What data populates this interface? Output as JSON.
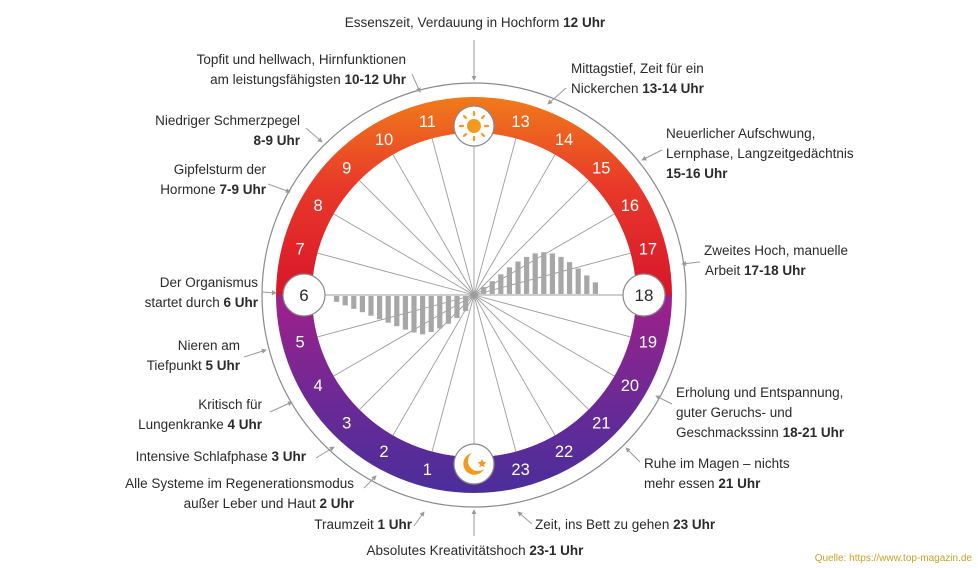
{
  "hours_top": [
    "7",
    "8",
    "9",
    "10",
    "11",
    "13",
    "14",
    "15",
    "16",
    "17"
  ],
  "hours_bottom": [
    "19",
    "20",
    "21",
    "22",
    "23",
    "1",
    "2",
    "3",
    "4",
    "5"
  ],
  "hour_6": "6",
  "hour_18": "18",
  "icons": {
    "noon": "sun-icon",
    "midnight": "moon-star-icon"
  },
  "colors": {
    "orange": "#f07a1a",
    "red": "#d8162a",
    "magenta": "#a0208a",
    "purple": "#4a2e9a",
    "bars": "#a7a7a7"
  },
  "activity_levels": {
    "morning_6_to_12": [
      0.1,
      0.16,
      0.22,
      0.28,
      0.34,
      0.4,
      0.46,
      0.52,
      0.58,
      0.63,
      0.66,
      0.62,
      0.56,
      0.48,
      0.38,
      0.26
    ],
    "afternoon_12_to_18": [
      0.12,
      0.22,
      0.34,
      0.46,
      0.56,
      0.64,
      0.7,
      0.72,
      0.7,
      0.64,
      0.55,
      0.44,
      0.32,
      0.2
    ]
  },
  "annotations": [
    {
      "text": "Essenszeit, Verdauung in Hochform",
      "time": "12 Uhr"
    },
    {
      "text": "Topfit und hellwach, Hirnfunktionen",
      "text2": "am leistungsfähigsten",
      "time": "10-12 Uhr"
    },
    {
      "text": "Mittagstief, Zeit für ein",
      "text2": "Nickerchen",
      "time": "13-14 Uhr"
    },
    {
      "text": "Niedriger Schmerzpegel",
      "time": "8-9 Uhr"
    },
    {
      "text": "Neuerlicher Aufschwung,",
      "text2": "Lernphase, Langzeitgedächtnis",
      "time": "15-16 Uhr"
    },
    {
      "text": "Gipfelsturm der",
      "text2": "Hormone",
      "time": "7-9 Uhr"
    },
    {
      "text": "Zweites Hoch, manuelle",
      "text2": "Arbeit",
      "time": "17-18 Uhr"
    },
    {
      "text": "Der Organismus",
      "text2": "startet durch",
      "time": "6 Uhr"
    },
    {
      "text": "Nieren am",
      "text2": "Tiefpunkt",
      "time": "5 Uhr"
    },
    {
      "text": "Erholung und Entspannung,",
      "text2": "guter Geruchs- und",
      "text3": "Geschmackssinn",
      "time": "18-21 Uhr"
    },
    {
      "text": "Kritisch für",
      "text2": "Lungenkranke",
      "time": "4 Uhr"
    },
    {
      "text": "Intensive Schlafphase",
      "time": "3 Uhr"
    },
    {
      "text": "Ruhe im Magen – nichts",
      "text2": "mehr essen",
      "time": "21 Uhr"
    },
    {
      "text": "Alle Systeme im Regenerationsmodus",
      "text2": "außer Leber und Haut",
      "time": "2 Uhr"
    },
    {
      "text": "Traumzeit",
      "time": "1 Uhr"
    },
    {
      "text": "Zeit, ins Bett zu gehen",
      "time": "23 Uhr"
    },
    {
      "text": "Absolutes Kreativitätshoch",
      "time": "23-1 Uhr"
    }
  ],
  "source": "Quelle: https://www.top-magazin.de"
}
